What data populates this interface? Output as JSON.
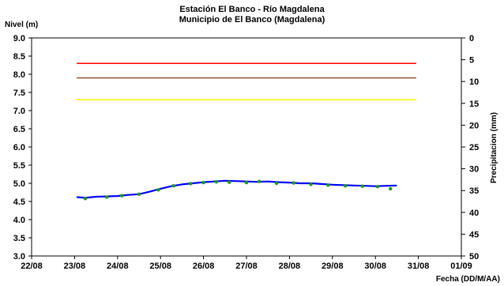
{
  "chart_data": {
    "type": "line",
    "title": "Estación El Banco - Río Magdalena",
    "subtitle": "Municipio de El Banco (Magdalena)",
    "ylabel": "Nivel (m)",
    "y2label": "Precipitacion (mm)",
    "xlabel": "Fecha (DD/M/AA)",
    "x_ticks": [
      "22/08",
      "23/08",
      "24/08",
      "25/08",
      "26/08",
      "27/08",
      "28/08",
      "29/08",
      "30/08",
      "31/08",
      "01/09"
    ],
    "ylim": [
      3.0,
      9.0
    ],
    "y_ticks": [
      "3.0",
      "3.5",
      "4.0",
      "4.5",
      "5.0",
      "5.5",
      "6.0",
      "6.5",
      "7.0",
      "7.5",
      "8.0",
      "8.5",
      "9.0"
    ],
    "y2lim": [
      0,
      50
    ],
    "y2_ticks": [
      "0",
      "5",
      "10",
      "15",
      "20",
      "25",
      "30",
      "35",
      "40",
      "45",
      "50"
    ],
    "grid": false,
    "threshold_lines": [
      {
        "value": 8.3,
        "color": "#ff0000"
      },
      {
        "value": 7.9,
        "color": "#a0522d"
      },
      {
        "value": 7.3,
        "color": "#ffff00"
      }
    ],
    "threshold_range": [
      1.05,
      8.95
    ],
    "series": [
      {
        "kind": "line",
        "color": "#0000ff",
        "x": [
          1.05,
          1.25,
          1.5,
          1.75,
          2.0,
          2.25,
          2.5,
          2.75,
          3.0,
          3.25,
          3.5,
          3.75,
          4.0,
          4.25,
          4.5,
          4.75,
          5.0,
          5.25,
          5.5,
          5.75,
          6.0,
          6.25,
          6.5,
          6.75,
          7.0,
          7.25,
          7.5,
          7.75,
          8.0,
          8.25,
          8.5
        ],
        "y": [
          4.62,
          4.6,
          4.63,
          4.64,
          4.65,
          4.68,
          4.7,
          4.77,
          4.85,
          4.92,
          4.97,
          5.0,
          5.03,
          5.05,
          5.07,
          5.06,
          5.05,
          5.04,
          5.05,
          5.03,
          5.02,
          5.0,
          5.0,
          4.98,
          4.96,
          4.95,
          4.94,
          4.93,
          4.92,
          4.93,
          4.94
        ]
      },
      {
        "kind": "scatter",
        "color": "#1a9a1a",
        "x": [
          1.25,
          1.75,
          2.1,
          2.5,
          2.95,
          3.3,
          3.7,
          4.0,
          4.3,
          4.6,
          5.0,
          5.3,
          5.7,
          6.1,
          6.5,
          6.9,
          7.3,
          7.7,
          8.05,
          8.35
        ],
        "y": [
          4.58,
          4.62,
          4.66,
          4.7,
          4.82,
          4.93,
          4.99,
          5.02,
          5.04,
          5.03,
          5.02,
          5.05,
          5.0,
          5.01,
          4.97,
          4.95,
          4.93,
          4.92,
          4.91,
          4.85
        ]
      }
    ]
  }
}
